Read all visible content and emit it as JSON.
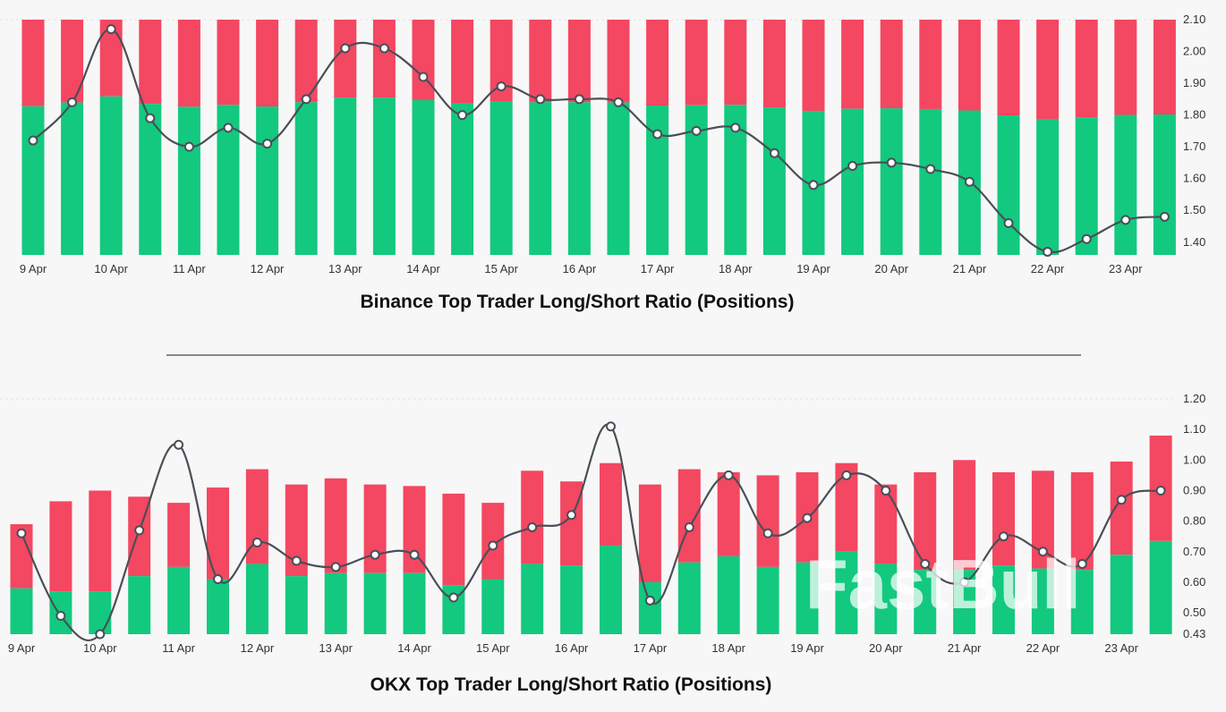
{
  "colors": {
    "long": "#12c97f",
    "short": "#f44761",
    "line": "#4a4f57",
    "marker_fill": "#ffffff",
    "divider": "#888888"
  },
  "watermark": "FastBull",
  "chart_data": [
    {
      "type": "bar+line",
      "title": "Binance Top Trader Long/Short Ratio (Positions)",
      "x_tick_labels": [
        "9 Apr",
        "10 Apr",
        "11 Apr",
        "12 Apr",
        "13 Apr",
        "14 Apr",
        "15 Apr",
        "16 Apr",
        "17 Apr",
        "18 Apr",
        "19 Apr",
        "20 Apr",
        "21 Apr",
        "22 Apr",
        "23 Apr"
      ],
      "y_ticks": [
        "2.10",
        "2.00",
        "1.90",
        "1.80",
        "1.70",
        "1.60",
        "1.50",
        "1.40"
      ],
      "ylim": [
        1.36,
        2.1
      ],
      "y_axis_position": "right",
      "bars_as": "stacked share of positions (long green / short red), full bar = 100%",
      "long_pct": [
        63.2,
        64.8,
        67.4,
        64.2,
        63.0,
        63.8,
        63.1,
        64.9,
        66.8,
        66.8,
        65.8,
        64.3,
        65.4,
        64.9,
        64.9,
        64.8,
        63.5,
        63.6,
        63.8,
        62.7,
        61.2,
        62.1,
        62.3,
        62.0,
        61.4,
        59.3,
        57.8,
        58.5,
        59.5,
        59.7
      ],
      "ratio": [
        1.72,
        1.84,
        2.07,
        1.79,
        1.7,
        1.76,
        1.71,
        1.85,
        2.01,
        2.01,
        1.92,
        1.8,
        1.89,
        1.85,
        1.85,
        1.84,
        1.74,
        1.75,
        1.76,
        1.68,
        1.58,
        1.64,
        1.65,
        1.63,
        1.59,
        1.46,
        1.37,
        1.41,
        1.47,
        1.48
      ]
    },
    {
      "type": "bar+line",
      "title": "OKX Top Trader Long/Short Ratio (Positions)",
      "x_tick_labels": [
        "9 Apr",
        "10 Apr",
        "11 Apr",
        "12 Apr",
        "13 Apr",
        "14 Apr",
        "15 Apr",
        "16 Apr",
        "17 Apr",
        "18 Apr",
        "19 Apr",
        "20 Apr",
        "21 Apr",
        "22 Apr",
        "23 Apr"
      ],
      "y_ticks": [
        "1.20",
        "1.10",
        "1.00",
        "0.90",
        "0.80",
        "0.70",
        "0.60",
        "0.50",
        "0.43"
      ],
      "ylim": [
        0.43,
        1.2
      ],
      "y_axis_position": "right",
      "bar_long_top": [
        0.58,
        0.57,
        0.57,
        0.62,
        0.65,
        0.61,
        0.66,
        0.62,
        0.63,
        0.63,
        0.63,
        0.59,
        0.61,
        0.66,
        0.655,
        0.72,
        0.6,
        0.665,
        0.685,
        0.65,
        0.665,
        0.7,
        0.66,
        0.64,
        0.64,
        0.655,
        0.645,
        0.64,
        0.69,
        0.735
      ],
      "bar_total_top": [
        0.79,
        0.865,
        0.9,
        0.88,
        0.86,
        0.91,
        0.97,
        0.92,
        0.94,
        0.92,
        0.915,
        0.89,
        0.86,
        0.965,
        0.93,
        0.99,
        0.92,
        0.97,
        0.96,
        0.95,
        0.96,
        0.99,
        0.92,
        0.96,
        1.0,
        0.96,
        0.965,
        0.96,
        0.995,
        1.08
      ],
      "ratio": [
        0.76,
        0.49,
        0.43,
        0.77,
        1.05,
        0.61,
        0.73,
        0.67,
        0.65,
        0.69,
        0.69,
        0.55,
        0.72,
        0.78,
        0.82,
        1.11,
        0.54,
        0.78,
        0.95,
        0.76,
        0.81,
        0.95,
        0.9,
        0.66,
        0.6,
        0.75,
        0.7,
        0.66,
        0.87,
        0.9
      ]
    }
  ]
}
